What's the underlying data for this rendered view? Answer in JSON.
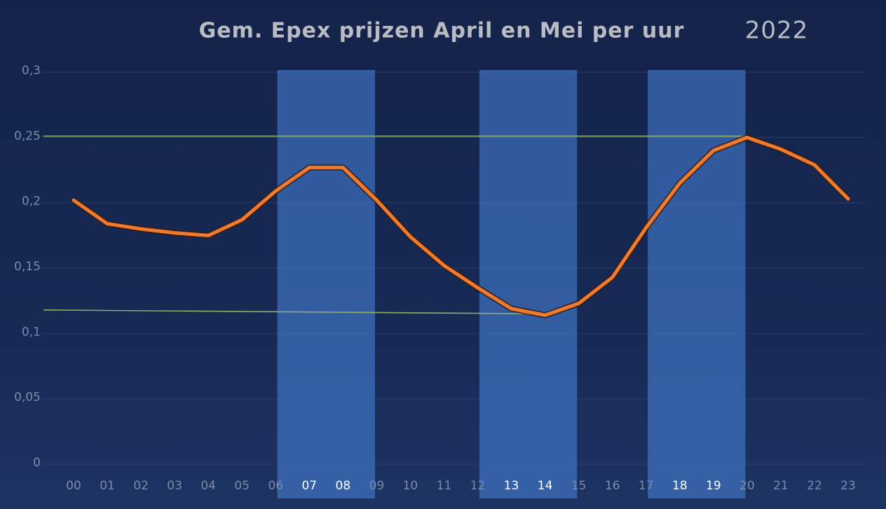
{
  "chart_data": {
    "type": "line",
    "title": "Gem. Epex prijzen April en Mei per uur",
    "title_year": "2022",
    "categories": [
      "00",
      "01",
      "02",
      "03",
      "04",
      "05",
      "06",
      "07",
      "08",
      "09",
      "10",
      "11",
      "12",
      "13",
      "14",
      "15",
      "16",
      "17",
      "18",
      "19",
      "20",
      "21",
      "22",
      "23"
    ],
    "series": [
      {
        "color": "#f07a2e",
        "values": [
          0.202,
          0.184,
          0.18,
          0.177,
          0.175,
          0.187,
          0.209,
          0.227,
          0.227,
          0.202,
          0.174,
          0.152,
          0.135,
          0.119,
          0.114,
          0.123,
          0.143,
          0.181,
          0.215,
          0.24,
          0.25,
          0.241,
          0.229,
          0.203
        ]
      }
    ],
    "ylim": [
      0,
      0.3
    ],
    "yticks": [
      {
        "value": 0,
        "label": "0"
      },
      {
        "value": 0.05,
        "label": "0,05"
      },
      {
        "value": 0.1,
        "label": "0,1"
      },
      {
        "value": 0.15,
        "label": "0,15"
      },
      {
        "value": 0.2,
        "label": "0,2"
      },
      {
        "value": 0.25,
        "label": "0,25"
      },
      {
        "value": 0.3,
        "label": "0,3"
      }
    ],
    "grid": true,
    "highlight_bands": [
      [
        "07",
        "08"
      ],
      [
        "13",
        "14"
      ],
      [
        "18",
        "19"
      ]
    ],
    "band_color": "#4a86e0",
    "reference_lines": [
      {
        "color": "#8fae6a",
        "x": [
          "00",
          "20"
        ],
        "y": [
          0.251,
          0.251
        ]
      },
      {
        "color": "#8fae6a",
        "x": [
          "00",
          "14"
        ],
        "y": [
          0.118,
          0.115
        ]
      }
    ]
  }
}
